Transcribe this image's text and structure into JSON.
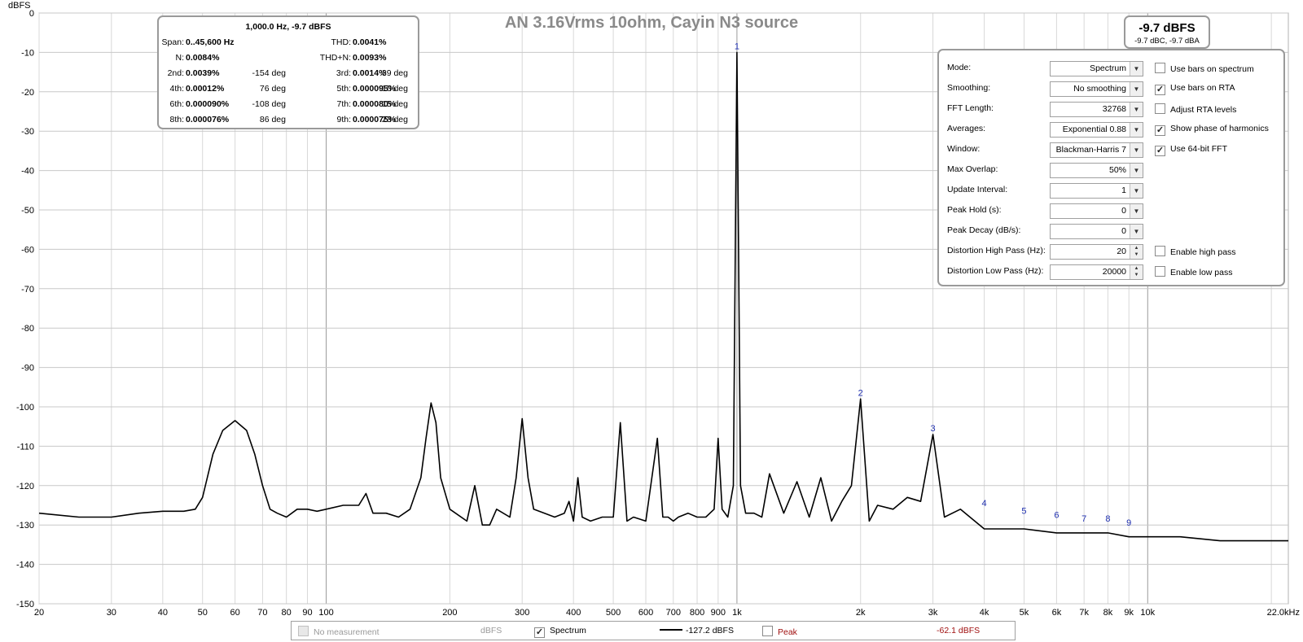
{
  "chart_data": {
    "type": "line",
    "title": "AN  3.16Vrms 10ohm, Cayin N3 source",
    "ylabel": "dBFS",
    "xlabel": "",
    "xscale": "log",
    "xlim": [
      20,
      22000
    ],
    "ylim": [
      -150,
      0
    ],
    "grid": true,
    "y_ticks": [
      "0",
      "-10",
      "-20",
      "-30",
      "-40",
      "-50",
      "-60",
      "-70",
      "-80",
      "-90",
      "-100",
      "-110",
      "-120",
      "-130",
      "-140",
      "-150"
    ],
    "x_ticks": [
      {
        "f": 20,
        "label": "20"
      },
      {
        "f": 30,
        "label": "30"
      },
      {
        "f": 40,
        "label": "40"
      },
      {
        "f": 50,
        "label": "50"
      },
      {
        "f": 60,
        "label": "60"
      },
      {
        "f": 70,
        "label": "70"
      },
      {
        "f": 80,
        "label": "80"
      },
      {
        "f": 90,
        "label": "90"
      },
      {
        "f": 100,
        "label": "100"
      },
      {
        "f": 200,
        "label": "200"
      },
      {
        "f": 300,
        "label": "300"
      },
      {
        "f": 400,
        "label": "400"
      },
      {
        "f": 500,
        "label": "500"
      },
      {
        "f": 600,
        "label": "600"
      },
      {
        "f": 700,
        "label": "700"
      },
      {
        "f": 800,
        "label": "800"
      },
      {
        "f": 900,
        "label": "900"
      },
      {
        "f": 1000,
        "label": "1k"
      },
      {
        "f": 2000,
        "label": "2k"
      },
      {
        "f": 3000,
        "label": "3k"
      },
      {
        "f": 4000,
        "label": "4k"
      },
      {
        "f": 5000,
        "label": "5k"
      },
      {
        "f": 6000,
        "label": "6k"
      },
      {
        "f": 7000,
        "label": "7k"
      },
      {
        "f": 8000,
        "label": "8k"
      },
      {
        "f": 9000,
        "label": "9k"
      },
      {
        "f": 10000,
        "label": "10k"
      },
      {
        "f": 22000,
        "label": "22.0kHz"
      }
    ],
    "series": [
      {
        "color": "#000000",
        "x": [
          20,
          25,
          30,
          35,
          40,
          45,
          48,
          50,
          53,
          56,
          60,
          64,
          67,
          70,
          73,
          76,
          80,
          85,
          90,
          95,
          100,
          110,
          120,
          125,
          130,
          140,
          150,
          160,
          170,
          175,
          180,
          185,
          190,
          200,
          220,
          230,
          240,
          250,
          260,
          280,
          290,
          300,
          310,
          320,
          340,
          360,
          380,
          390,
          400,
          410,
          420,
          440,
          470,
          500,
          520,
          540,
          560,
          600,
          640,
          660,
          680,
          700,
          720,
          760,
          800,
          840,
          880,
          900,
          920,
          950,
          980,
          1000,
          1020,
          1050,
          1100,
          1150,
          1200,
          1300,
          1400,
          1500,
          1600,
          1700,
          1800,
          1900,
          2000,
          2100,
          2200,
          2400,
          2600,
          2800,
          3000,
          3200,
          3500,
          4000,
          4500,
          5000,
          6000,
          7000,
          8000,
          9000,
          10000,
          12000,
          15000,
          18000,
          22000
        ],
        "y": [
          -127,
          -128,
          -128,
          -127,
          -126.5,
          -126.5,
          -126,
          -123,
          -112,
          -106,
          -103.5,
          -106,
          -112,
          -120,
          -126,
          -127,
          -128,
          -126,
          -126,
          -126.5,
          -126,
          -125,
          -125,
          -122,
          -127,
          -127,
          -128,
          -126,
          -118,
          -108,
          -99,
          -104,
          -118,
          -126,
          -129,
          -120,
          -130,
          -130,
          -126,
          -128,
          -118,
          -103,
          -118,
          -126,
          -127,
          -128,
          -127,
          -124,
          -129,
          -118,
          -128,
          -129,
          -128,
          -128,
          -104,
          -129,
          -128,
          -129,
          -108,
          -128,
          -128,
          -129,
          -128,
          -127,
          -128,
          -128,
          -126,
          -108,
          -126,
          -128,
          -120,
          -10,
          -120,
          -127,
          -127,
          -128,
          -117,
          -127,
          -119,
          -128,
          -118,
          -129,
          -124,
          -120,
          -98,
          -129,
          -125,
          -126,
          -123,
          -124,
          -107,
          -128,
          -126,
          -131,
          -131,
          -131,
          -132,
          -132,
          -132,
          -133,
          -133,
          -133,
          -134,
          -134,
          -134
        ]
      }
    ],
    "harmonic_markers": [
      {
        "label": "1",
        "f": 1000,
        "db": -10
      },
      {
        "label": "2",
        "f": 2000,
        "db": -98
      },
      {
        "label": "3",
        "f": 3000,
        "db": -107
      },
      {
        "label": "4",
        "f": 4000,
        "db": -126
      },
      {
        "label": "5",
        "f": 5000,
        "db": -128
      },
      {
        "label": "6",
        "f": 6000,
        "db": -129
      },
      {
        "label": "7",
        "f": 7000,
        "db": -130
      },
      {
        "label": "8",
        "f": 8000,
        "db": -130
      },
      {
        "label": "9",
        "f": 9000,
        "db": -131
      }
    ]
  },
  "distortion": {
    "header": "1,000.0 Hz, -9.7 dBFS",
    "rows": [
      [
        {
          "t": "Span:",
          "c": "l0"
        },
        {
          "t": "0..45,600 Hz",
          "c": "v0"
        },
        {
          "t": "THD:",
          "c": "l1"
        },
        {
          "t": "0.0041%",
          "c": "v1"
        }
      ],
      [
        {
          "t": "N:",
          "c": "l0"
        },
        {
          "t": "0.0084%",
          "c": "v0"
        },
        {
          "t": "THD+N:",
          "c": "l1"
        },
        {
          "t": "0.0093%",
          "c": "v1"
        }
      ],
      [
        {
          "t": "2nd:",
          "c": "l0"
        },
        {
          "t": "0.0039%",
          "c": "v0"
        },
        {
          "t": "-154 deg",
          "c": "p0"
        },
        {
          "t": "3rd:",
          "c": "l1"
        },
        {
          "t": "0.0014%",
          "c": "v1"
        },
        {
          "t": "39 deg",
          "c": "p1"
        }
      ],
      [
        {
          "t": "4th:",
          "c": "l0"
        },
        {
          "t": "0.00012%",
          "c": "v0"
        },
        {
          "t": "76 deg",
          "c": "p0"
        },
        {
          "t": "5th:",
          "c": "l1"
        },
        {
          "t": "0.000095%",
          "c": "v1"
        },
        {
          "t": "-10 deg",
          "c": "p1"
        }
      ],
      [
        {
          "t": "6th:",
          "c": "l0"
        },
        {
          "t": "0.000090%",
          "c": "v0"
        },
        {
          "t": "-108 deg",
          "c": "p0"
        },
        {
          "t": "7th:",
          "c": "l1"
        },
        {
          "t": "0.000080%",
          "c": "v1"
        },
        {
          "t": "15 deg",
          "c": "p1"
        }
      ],
      [
        {
          "t": "8th:",
          "c": "l0"
        },
        {
          "t": "0.000076%",
          "c": "v0"
        },
        {
          "t": "86 deg",
          "c": "p0"
        },
        {
          "t": "9th:",
          "c": "l1"
        },
        {
          "t": "0.000075%",
          "c": "v1"
        },
        {
          "t": "23 deg",
          "c": "p1"
        }
      ]
    ]
  },
  "level": {
    "main": "-9.7 dBFS",
    "sub": "-9.7 dBC, -9.7 dBA"
  },
  "settings": {
    "fields": [
      {
        "label": "Mode:",
        "value": "Spectrum",
        "kind": "select"
      },
      {
        "label": "Smoothing:",
        "value": "No  smoothing",
        "kind": "select"
      },
      {
        "label": "FFT Length:",
        "value": "32768",
        "kind": "select"
      },
      {
        "label": "Averages:",
        "value": "Exponential 0.88",
        "kind": "select"
      },
      {
        "label": "Window:",
        "value": "Blackman-Harris 7",
        "kind": "select"
      },
      {
        "label": "Max Overlap:",
        "value": "50%",
        "kind": "select"
      },
      {
        "label": "Update Interval:",
        "value": "1",
        "kind": "select"
      },
      {
        "label": "Peak Hold (s):",
        "value": "0",
        "kind": "select"
      },
      {
        "label": "Peak Decay (dB/s):",
        "value": "0",
        "kind": "select"
      },
      {
        "label": "Distortion High Pass (Hz):",
        "value": "20",
        "kind": "spin"
      },
      {
        "label": "Distortion Low Pass (Hz):",
        "value": "20000",
        "kind": "spin"
      }
    ],
    "checkboxes": [
      {
        "label": "Use bars on spectrum",
        "checked": false,
        "row": 0
      },
      {
        "label": "Use bars on RTA",
        "checked": true,
        "row": 1
      },
      {
        "label": "Adjust RTA levels",
        "checked": false,
        "row": 2
      },
      {
        "label": "Show phase of harmonics",
        "checked": true,
        "row": 3
      },
      {
        "label": "Use 64-bit FFT",
        "checked": true,
        "row": 4
      },
      {
        "label": "Enable high pass",
        "checked": false,
        "row": 9
      },
      {
        "label": "Enable low pass",
        "checked": false,
        "row": 10
      }
    ]
  },
  "legend": {
    "no_measurement": "No measurement",
    "units": "dBFS",
    "spectrum_label": "Spectrum",
    "spectrum_value": "-127.2 dBFS",
    "peak_label": "Peak",
    "peak_value": "-62.1 dBFS",
    "peak_color": "#a01010"
  }
}
